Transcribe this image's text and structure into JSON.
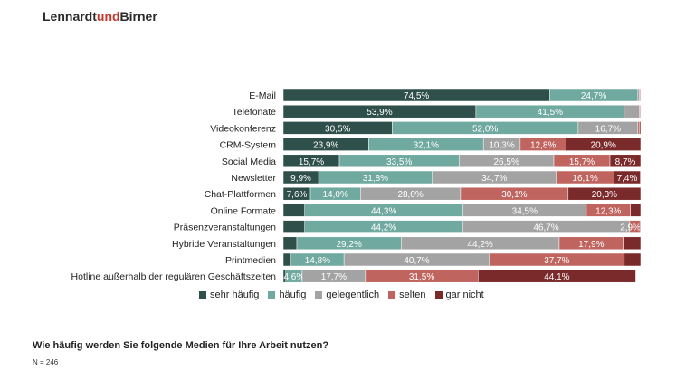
{
  "brand": {
    "part1": "Lennardt",
    "part2": "und",
    "part3": "Birner"
  },
  "footer": {
    "question": "Wie häufig werden Sie folgende Medien für Ihre Arbeit nutzen?",
    "sample": "N = 246"
  },
  "colors": {
    "sehr häufig": "#2f4f4a",
    "häufig": "#6fa99f",
    "gelegentlich": "#a3a3a3",
    "selten": "#c0645f",
    "gar nicht": "#7a2a2a"
  },
  "chart_data": {
    "type": "bar",
    "orientation": "horizontal-stacked",
    "categories": [
      "E-Mail",
      "Telefonate",
      "Videokonferenz",
      "CRM-System",
      "Social Media",
      "Newsletter",
      "Chat-Plattformen",
      "Online Formate",
      "Präsenzveranstaltungen",
      "Hybride Veranstaltungen",
      "Printmedien",
      "Hotline außerhalb der regulären Geschäftszeiten"
    ],
    "series": [
      {
        "name": "sehr häufig",
        "values": [
          74.5,
          53.9,
          30.5,
          23.9,
          15.7,
          9.9,
          7.6,
          6.0,
          6.0,
          3.8,
          2.2,
          0.7
        ],
        "labels": [
          "74,5%",
          "53,9%",
          "30,5%",
          "23,9%",
          "15,7%",
          "9,9%",
          "7,6%",
          "",
          "",
          "",
          "",
          ""
        ]
      },
      {
        "name": "häufig",
        "values": [
          24.7,
          41.5,
          52.0,
          32.1,
          33.5,
          31.8,
          14.0,
          44.3,
          44.2,
          29.2,
          14.8,
          4.6
        ],
        "labels": [
          "24,7%",
          "41,5%",
          "52,0%",
          "32,1%",
          "33,5%",
          "31,8%",
          "14,0%",
          "44,3%",
          "44,2%",
          "29,2%",
          "14,8%",
          "4,6%"
        ]
      },
      {
        "name": "gelegentlich",
        "values": [
          0.4,
          4.2,
          16.7,
          10.3,
          26.5,
          34.7,
          28.0,
          34.5,
          46.7,
          44.2,
          40.7,
          17.7
        ],
        "labels": [
          "",
          "",
          "16,7%",
          "10,3%",
          "26,5%",
          "34,7%",
          "28,0%",
          "34,5%",
          "46,7%",
          "44,2%",
          "40,7%",
          "17,7%"
        ]
      },
      {
        "name": "selten",
        "values": [
          0.2,
          0.2,
          0.5,
          12.8,
          15.7,
          16.1,
          30.1,
          12.3,
          2.9,
          17.9,
          37.7,
          31.5
        ],
        "labels": [
          "",
          "",
          "",
          "12,8%",
          "15,7%",
          "16,1%",
          "30,1%",
          "12,3%",
          "2,9%",
          "17,9%",
          "37,7%",
          "31,5%"
        ]
      },
      {
        "name": "gar nicht",
        "values": [
          0.2,
          0.2,
          0.3,
          20.9,
          8.7,
          7.4,
          20.3,
          2.9,
          0.2,
          4.9,
          4.6,
          44.1
        ],
        "labels": [
          "",
          "",
          "",
          "20,9%",
          "8,7%",
          "7,4%",
          "20,3%",
          "",
          "",
          "",
          "",
          "44,1%"
        ]
      }
    ],
    "xlim": [
      0,
      100
    ],
    "legend_position": "bottom",
    "grid": false
  }
}
